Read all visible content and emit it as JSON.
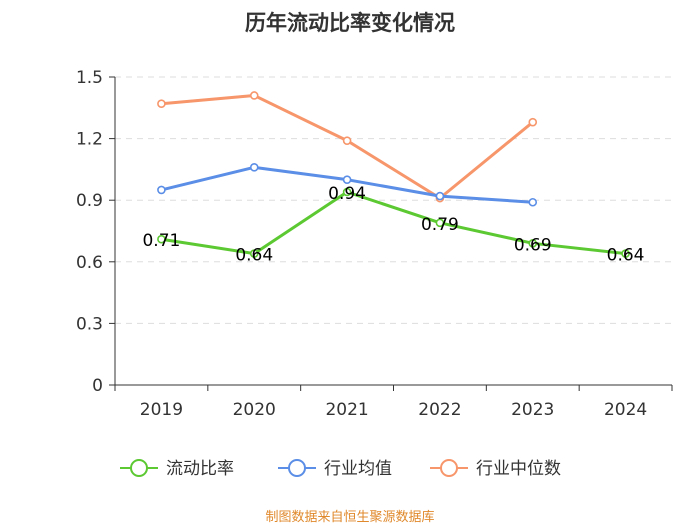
{
  "chart_data": {
    "type": "line",
    "title": "历年流动比率变化情况",
    "categories": [
      "2019",
      "2020",
      "2021",
      "2022",
      "2023",
      "2024"
    ],
    "ylim": [
      0,
      1.5
    ],
    "yticks": [
      0,
      0.3,
      0.6,
      0.9,
      1.2,
      1.5
    ],
    "ytick_labels": [
      "0",
      "0.3",
      "0.6",
      "0.9",
      "1.2",
      "1.5"
    ],
    "grid": true,
    "legend_position": "bottom",
    "series": [
      {
        "name": "流动比率",
        "color": "#5cc832",
        "values": [
          0.71,
          0.64,
          0.94,
          0.79,
          0.69,
          0.64
        ],
        "data_labels": [
          "0.71",
          "0.64",
          "0.94",
          "0.79",
          "0.69",
          "0.64"
        ]
      },
      {
        "name": "行业均值",
        "color": "#5b8ee6",
        "values": [
          0.95,
          1.06,
          1.0,
          0.92,
          0.89,
          null
        ]
      },
      {
        "name": "行业中位数",
        "color": "#f7966a",
        "values": [
          1.37,
          1.41,
          1.19,
          0.91,
          1.28,
          null
        ]
      }
    ],
    "source": "制图数据来自恒生聚源数据库"
  }
}
